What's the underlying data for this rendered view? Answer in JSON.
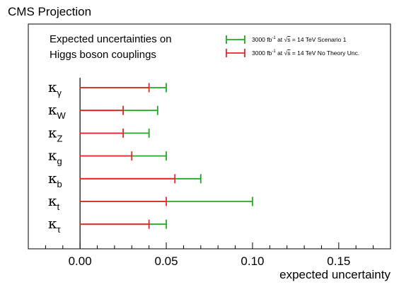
{
  "header": {
    "projection_label": "CMS Projection"
  },
  "chart_data": {
    "type": "bar",
    "title": "Expected uncertainties on Higgs boson couplings",
    "title_lines": [
      "Expected uncertainties on",
      "Higgs boson couplings"
    ],
    "xlabel": "expected uncertainty",
    "ylabel": "",
    "xlim": [
      -0.03,
      0.18
    ],
    "x_ticks": [
      0.0,
      0.05,
      0.1,
      0.15
    ],
    "x_tick_labels": [
      "0.00",
      "0.05",
      "0.10",
      "0.15"
    ],
    "orientation": "horizontal",
    "legend_placement": "top-right",
    "grid": false,
    "categories": [
      {
        "main": "κ",
        "sub": "γ"
      },
      {
        "main": "κ",
        "sub": "W"
      },
      {
        "main": "κ",
        "sub": "Z"
      },
      {
        "main": "κ",
        "sub": "g"
      },
      {
        "main": "κ",
        "sub": "b"
      },
      {
        "main": "κ",
        "sub": "t"
      },
      {
        "main": "κ",
        "sub": "τ"
      }
    ],
    "series": [
      {
        "name": "3000 fb⁻¹ at √s = 14 TeV Scenario 1",
        "legend_parts": {
          "lumi": "3000 fb",
          "exp": "-1",
          "at": " at ",
          "sqrt": "√",
          "s": "s",
          "rest": " = 14 TeV Scenario 1"
        },
        "color": "#22a822",
        "values": [
          0.05,
          0.045,
          0.04,
          0.05,
          0.07,
          0.1,
          0.05
        ]
      },
      {
        "name": "3000 fb⁻¹ at √s = 14 TeV No Theory Unc.",
        "legend_parts": {
          "lumi": "3000 fb",
          "exp": "-1",
          "at": " at ",
          "sqrt": "√",
          "s": "s",
          "rest": " = 14 TeV No Theory Unc."
        },
        "color": "#e8262b",
        "values": [
          0.04,
          0.025,
          0.025,
          0.03,
          0.055,
          0.05,
          0.04
        ]
      }
    ]
  }
}
